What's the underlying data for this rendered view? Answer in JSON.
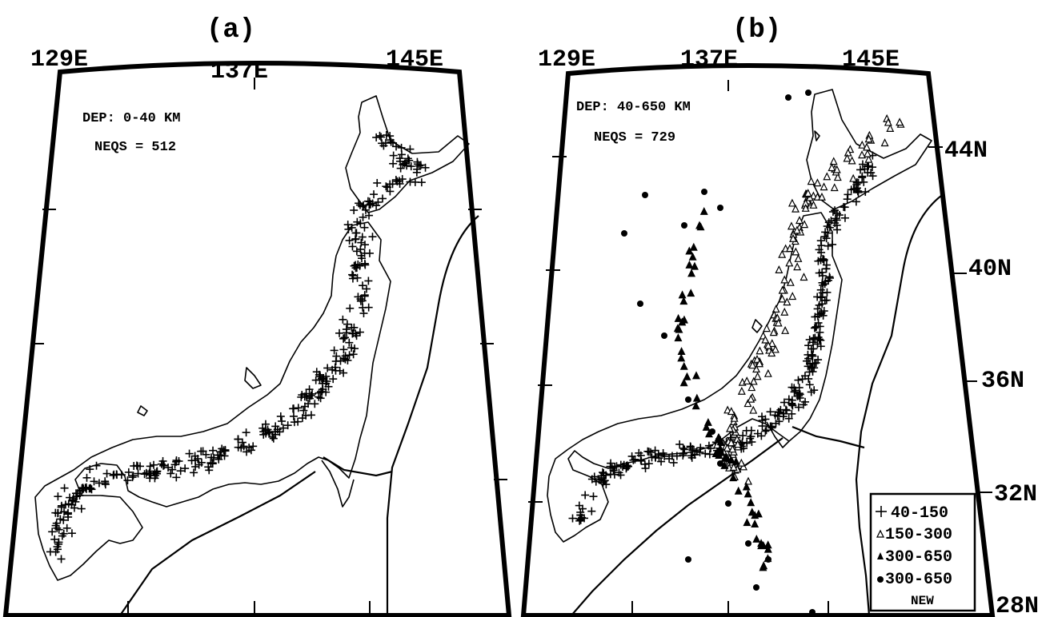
{
  "panels": [
    {
      "letter": "(a)",
      "lon_labels": [
        "129E",
        "137E",
        "145E"
      ],
      "info_depth": "DEP: 0-40 KM",
      "info_count": "NEQS = 512",
      "symbols": "plus"
    },
    {
      "letter": "(b)",
      "lon_labels": [
        "129E",
        "137E",
        "145E"
      ],
      "lat_labels": [
        "44N",
        "40N",
        "36N",
        "32N",
        "28N"
      ],
      "info_depth": "DEP: 40-650 KM",
      "info_count": "NEQS = 729",
      "symbols": "mixed"
    }
  ],
  "legend": {
    "items": [
      {
        "symbol": "plus",
        "label": "40-150"
      },
      {
        "symbol": "open-triangle",
        "label": "150-300"
      },
      {
        "symbol": "filled-triangle",
        "label": "300-650"
      },
      {
        "symbol": "filled-circle",
        "label": "300-650"
      }
    ],
    "note": "NEW"
  },
  "colors": {
    "ink": "#000000",
    "paper": "#ffffff"
  }
}
